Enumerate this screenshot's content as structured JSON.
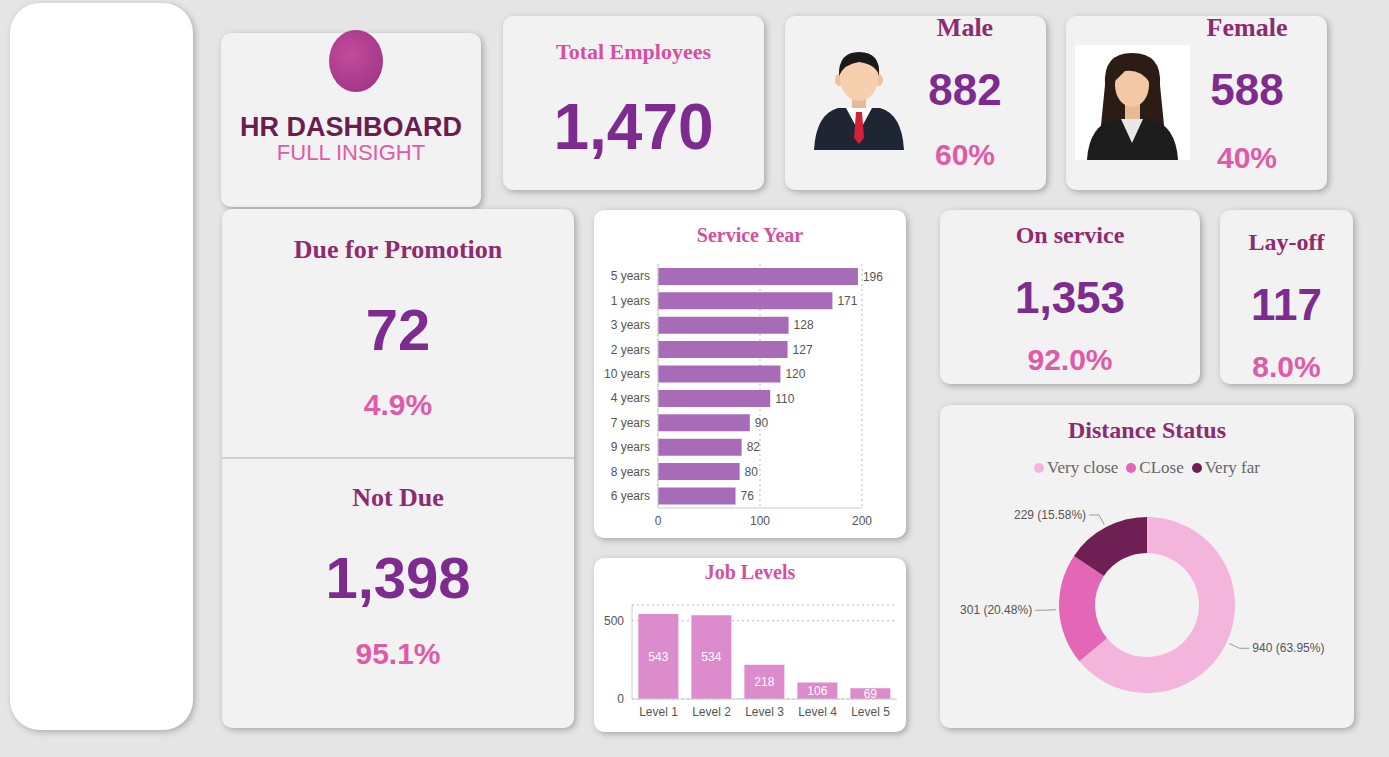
{
  "header": {
    "title": "HR DASHBOARD",
    "subtitle": "FULL INSIGHT"
  },
  "cards": {
    "total": {
      "title": "Total Employees",
      "value": 1470,
      "value_label": "1,470"
    },
    "male": {
      "title": "Male",
      "value": 882,
      "share": 60,
      "share_label": "60%"
    },
    "female": {
      "title": "Female",
      "value": 588,
      "share": 40,
      "share_label": "40%"
    },
    "due": {
      "title": "Due for Promotion",
      "value": 72,
      "share": 4.9,
      "share_label": "4.9%"
    },
    "not_due": {
      "title": "Not Due",
      "value": 1398,
      "value_label": "1,398",
      "share": 95.1,
      "share_label": "95.1%"
    },
    "on_service": {
      "title": "On service",
      "value": 1353,
      "value_label": "1,353",
      "share": 92.0,
      "share_label": "92.0%"
    },
    "layoff": {
      "title": "Lay-off",
      "value": 117,
      "share": 8.0,
      "share_label": "8.0%"
    }
  },
  "chart_data": [
    {
      "type": "bar",
      "title": "Service Year",
      "orientation": "horizontal",
      "categories": [
        "5 years",
        "1 years",
        "3 years",
        "2 years",
        "10 years",
        "4 years",
        "7 years",
        "9 years",
        "8 years",
        "6 years"
      ],
      "values": [
        196,
        171,
        128,
        127,
        120,
        110,
        90,
        82,
        80,
        76
      ],
      "color": "#a86bb8",
      "xlim": [
        0,
        200
      ],
      "xticks": [
        0,
        100,
        200
      ],
      "grid": true,
      "data_labels": true
    },
    {
      "type": "bar",
      "title": "Job Levels",
      "categories": [
        "Level 1",
        "Level 2",
        "Level 3",
        "Level 4",
        "Level 5"
      ],
      "values": [
        543,
        534,
        218,
        106,
        69
      ],
      "color": "#dc8bcc",
      "ylim": [
        0,
        600
      ],
      "yticks": [
        0,
        500
      ],
      "grid": true,
      "data_labels": true
    },
    {
      "type": "pie",
      "title": "Distance Status",
      "categories": [
        "Very close",
        "CLose",
        "Very far"
      ],
      "values": [
        940,
        301,
        229
      ],
      "value_labels": [
        "940 (63.95%)",
        "301 (20.48%)",
        "229 (15.58%)"
      ],
      "colors": [
        "#f3b5dc",
        "#e366b7",
        "#6e1f53"
      ],
      "legend": "top",
      "data_labels": true
    }
  ]
}
